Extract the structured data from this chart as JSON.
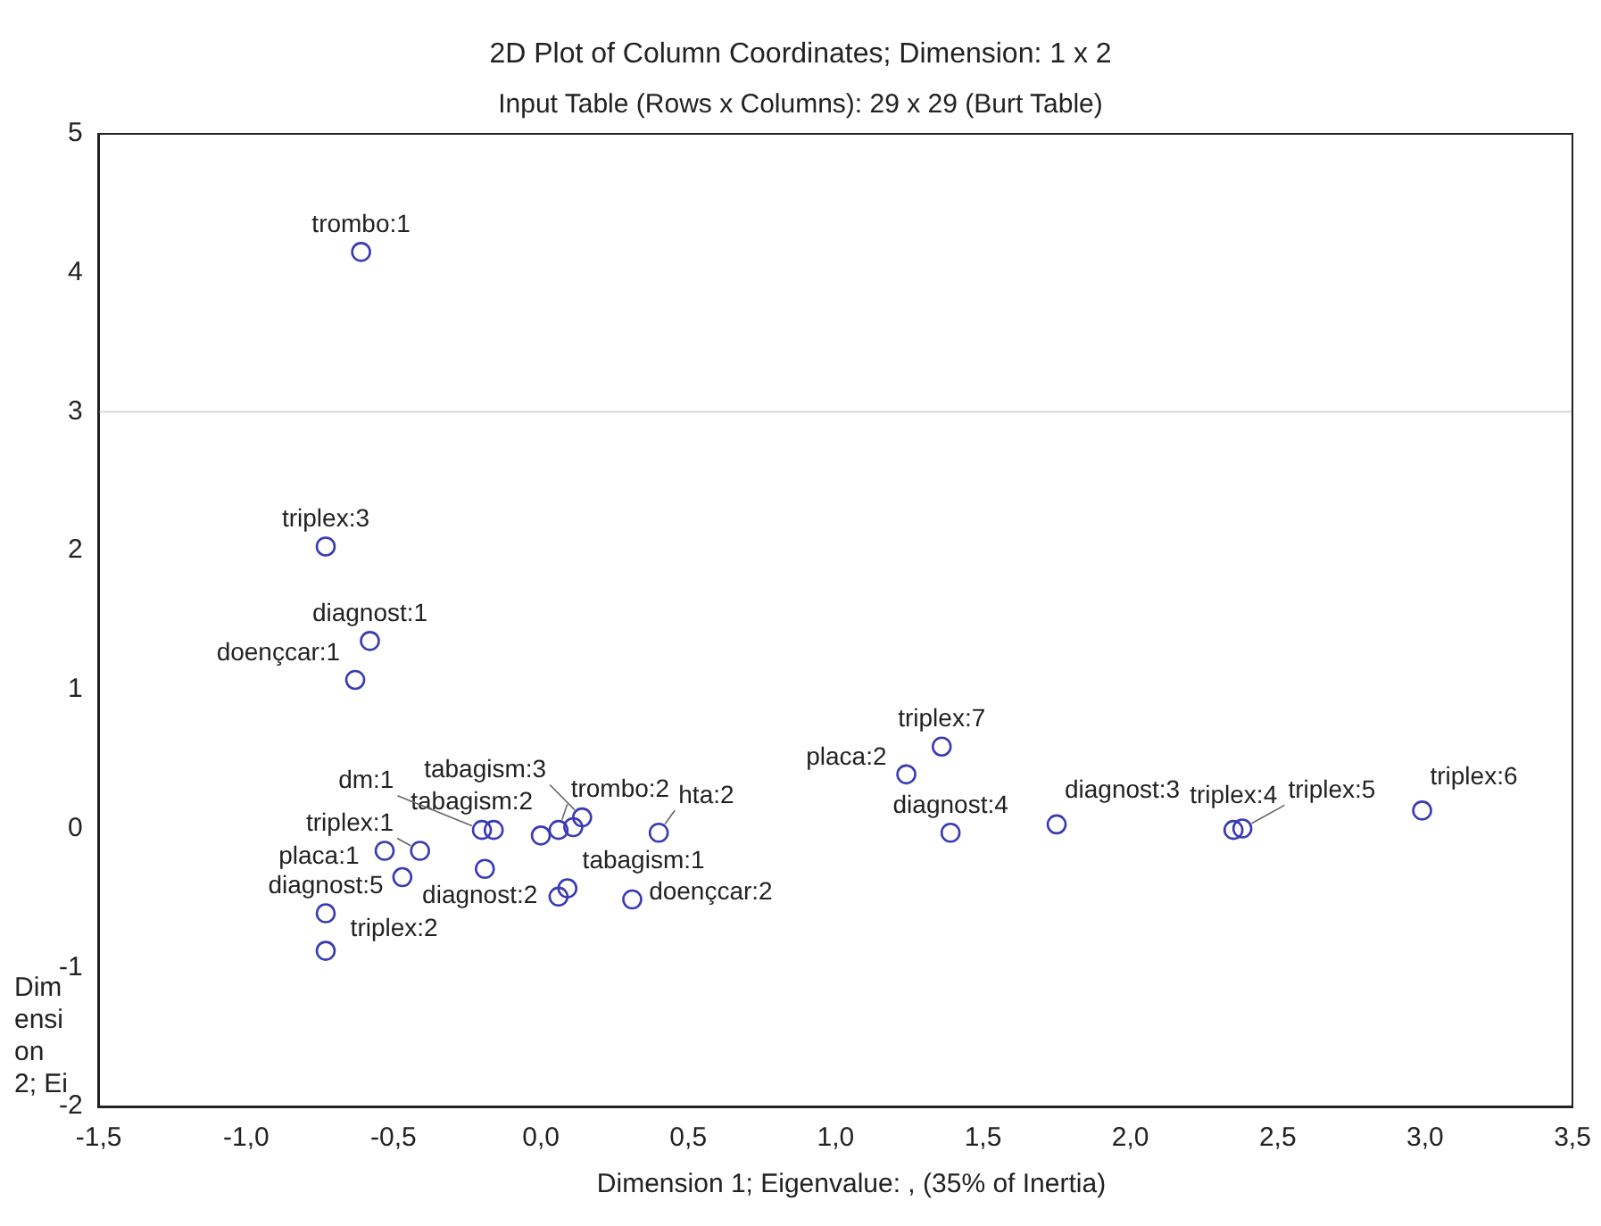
{
  "chart_data": {
    "type": "scatter",
    "title": "2D Plot of Column Coordinates; Dimension:  1 x  2",
    "subtitle": "Input Table (Rows x Columns): 29 x 29 (Burt Table)",
    "xlabel": "Dimension 1; Eigenvalue: , (35% of Inertia)",
    "ylabel": "Dimension 2; Ei",
    "marker": "circle",
    "series": [
      {
        "color": "#3a3ab4",
        "x": [
          -0.61,
          -0.73,
          -0.58,
          -0.63,
          -0.73,
          -0.73,
          -0.47,
          -0.53,
          -0.41,
          -0.2,
          -0.16,
          0.0,
          0.06,
          0.11,
          0.14,
          0.4,
          -0.19,
          0.06,
          0.09,
          0.31,
          1.36,
          1.24,
          1.39,
          1.75,
          2.35,
          2.38,
          2.99
        ],
        "values": [
          4.15,
          2.03,
          1.35,
          1.07,
          -0.61,
          -0.88,
          -0.35,
          -0.16,
          -0.16,
          -0.01,
          -0.01,
          -0.05,
          -0.01,
          0.01,
          0.08,
          -0.03,
          -0.29,
          -0.49,
          -0.43,
          -0.51,
          0.59,
          0.39,
          -0.03,
          0.03,
          -0.01,
          0.0,
          0.13
        ]
      }
    ],
    "xlim": [
      -1.5,
      3.5
    ],
    "xticks": [
      {
        "value": -1.5,
        "label": "-1,5"
      },
      {
        "value": -1,
        "label": "-1,0"
      },
      {
        "value": -0.5,
        "label": "-0,5"
      },
      {
        "value": 0,
        "label": "0,0"
      },
      {
        "value": 0.5,
        "label": "0,5"
      },
      {
        "value": 1,
        "label": "1,0"
      },
      {
        "value": 1.5,
        "label": "1,5"
      },
      {
        "value": 2,
        "label": "2,0"
      },
      {
        "value": 2.5,
        "label": "2,5"
      },
      {
        "value": 3,
        "label": "3,0"
      },
      {
        "value": 3.5,
        "label": "3,5"
      }
    ],
    "ylim": [
      -2,
      5
    ],
    "yticks": [
      -2,
      -1,
      0,
      1,
      2,
      3,
      4,
      5
    ],
    "ref_lines": [
      {
        "axis": "y",
        "value": 3,
        "color": "#d8d8d8"
      }
    ],
    "annotations": [
      {
        "text": "trombo:1",
        "x": -0.61,
        "y": 4.15
      },
      {
        "text": "triplex:3",
        "x": -0.73,
        "y": 2.03
      },
      {
        "text": "diagnost:1",
        "x": -0.58,
        "y": 1.35
      },
      {
        "text": "doençcar:1",
        "x": -0.63,
        "y": 1.07
      },
      {
        "text": "diagnost:5",
        "x": -0.73,
        "y": -0.61
      },
      {
        "text": "triplex:2",
        "x": -0.73,
        "y": -0.88
      },
      {
        "text": "placa:1",
        "x": -0.53,
        "y": -0.16
      },
      {
        "text": "triplex:1",
        "x": -0.41,
        "y": -0.16
      },
      {
        "text": "dm:1",
        "x": -0.2,
        "y": -0.01
      },
      {
        "text": "tabagism:2",
        "x": 0.0,
        "y": -0.05
      },
      {
        "text": "trombo:2",
        "x": 0.06,
        "y": -0.01
      },
      {
        "text": "tabagism:3",
        "x": 0.14,
        "y": 0.08
      },
      {
        "text": "hta:2",
        "x": 0.4,
        "y": -0.03
      },
      {
        "text": "tabagism:1",
        "x": 0.09,
        "y": -0.43
      },
      {
        "text": "diagnost:2",
        "x": 0.06,
        "y": -0.49
      },
      {
        "text": "doençcar:2",
        "x": 0.31,
        "y": -0.51
      },
      {
        "text": "triplex:7",
        "x": 1.36,
        "y": 0.59
      },
      {
        "text": "placa:2",
        "x": 1.24,
        "y": 0.39
      },
      {
        "text": "diagnost:4",
        "x": 1.39,
        "y": -0.03
      },
      {
        "text": "diagnost:3",
        "x": 1.75,
        "y": 0.03
      },
      {
        "text": "triplex:4",
        "x": 2.35,
        "y": -0.01
      },
      {
        "text": "triplex:5",
        "x": 2.38,
        "y": 0.0
      },
      {
        "text": "triplex:6",
        "x": 2.99,
        "y": 0.13
      }
    ]
  }
}
